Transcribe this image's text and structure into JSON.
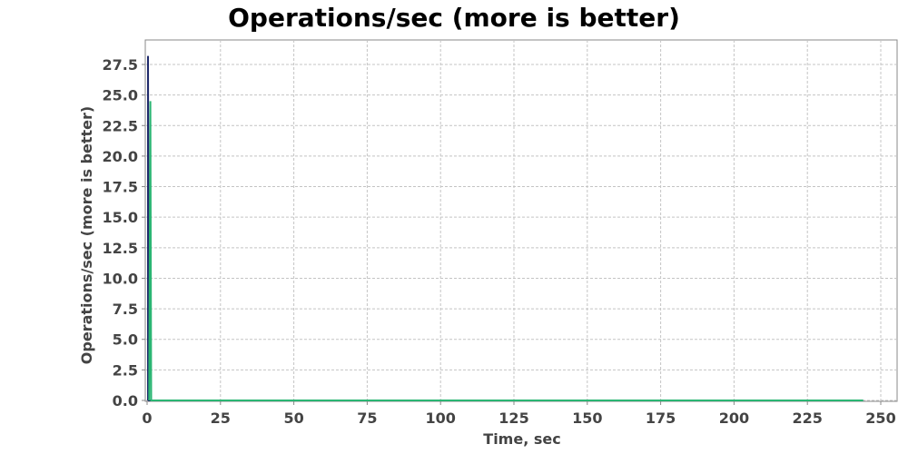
{
  "chart_data": {
    "type": "line",
    "title": "Operations/sec (more is better)",
    "xlabel": "Time, sec",
    "ylabel": "Operations/sec (more is better)",
    "xlim": [
      0,
      254
    ],
    "ylim": [
      0,
      28.5
    ],
    "xticks": [
      0,
      25,
      50,
      75,
      100,
      125,
      150,
      175,
      200,
      225,
      250
    ],
    "xtick_labels": [
      "0",
      "25",
      "50",
      "75",
      "100",
      "125",
      "150",
      "175",
      "200",
      "225",
      "250"
    ],
    "yticks": [
      0,
      2.5,
      5,
      7.5,
      10,
      12.5,
      15,
      17.5,
      20,
      22.5,
      25,
      27.5
    ],
    "ytick_labels": [
      "0.0",
      "2.5",
      "5.0",
      "7.5",
      "10.0",
      "12.5",
      "15.0",
      "17.5",
      "20.0",
      "22.5",
      "25.0",
      "27.5"
    ],
    "grid": true,
    "legend": "none",
    "series": [
      {
        "color": "#1f2a6b",
        "x": [
          0.3,
          0.3,
          0.6,
          1.0,
          244
        ],
        "y": [
          0,
          28.2,
          0,
          0,
          0
        ]
      },
      {
        "color": "#2bb673",
        "x": [
          0.7,
          1.1,
          1.4,
          244
        ],
        "y": [
          0,
          24.5,
          0,
          0
        ]
      }
    ]
  }
}
